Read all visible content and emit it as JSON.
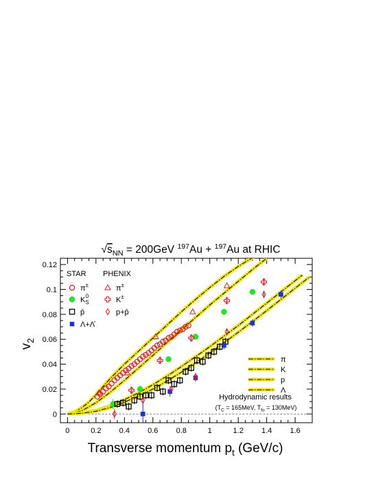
{
  "chart_data": {
    "type": "scatter",
    "title": {
      "sqrt": "√",
      "s": "s",
      "nn": "NN",
      "eq": " = 200GeV ",
      "a1": "197",
      "au1": "Au + ",
      "a2": "197",
      "au2": "Au at RHIC"
    },
    "xlabel": {
      "main": "Transverse momentum p",
      "sub": "t",
      "unit": " (GeV/c)"
    },
    "ylabel": {
      "main": "v",
      "sub": "2"
    },
    "xlim": [
      -0.05,
      1.72
    ],
    "ylim": [
      -0.007,
      0.125
    ],
    "x_ticks": [
      "0",
      "0.2",
      "0.4",
      "0.6",
      "0.8",
      "1",
      "1.2",
      "1.4",
      "1.6"
    ],
    "x_tick_values": [
      0,
      0.2,
      0.4,
      0.6,
      0.8,
      1.0,
      1.2,
      1.4,
      1.6
    ],
    "y_ticks": [
      "0",
      "0.02",
      "0.04",
      "0.06",
      "0.08",
      "0.1",
      "0.12"
    ],
    "y_tick_values": [
      0,
      0.02,
      0.04,
      0.06,
      0.08,
      0.1,
      0.12
    ],
    "zero_line": true,
    "legend": {
      "star_title": "STAR",
      "phenix_title": "PHENIX",
      "star_items": [
        {
          "main": "π",
          "sup": "±",
          "sub": "",
          "marker": "open-circle",
          "color": "#e8141a"
        },
        {
          "main": "K",
          "sup": "0",
          "sub": "S",
          "marker": "filled-circle",
          "color": "#1ee81e"
        },
        {
          "main": "p̄",
          "sup": "",
          "sub": "",
          "marker": "open-square",
          "color": "#000000"
        },
        {
          "main": "Λ+Λ̄",
          "sup": "",
          "sub": "",
          "marker": "filled-square",
          "color": "#1432e6"
        }
      ],
      "phenix_items": [
        {
          "main": "π",
          "sup": "±",
          "marker": "open-triangle",
          "color": "#e8141a"
        },
        {
          "main": "K",
          "sup": "±",
          "marker": "open-cross",
          "color": "#e8141a"
        },
        {
          "main": "p+p̄",
          "sup": "",
          "marker": "open-diamond",
          "color": "#e8141a"
        }
      ],
      "hydro_items": [
        {
          "label": "π"
        },
        {
          "label": "K"
        },
        {
          "label": "p"
        },
        {
          "label": "Λ"
        }
      ],
      "hydro_title": "Hydrodynamic results",
      "hydro_params": {
        "open": "(T",
        "c": "C",
        "mid": " = 165MeV, T",
        "fo": "fo",
        "close": " = 130MeV)"
      }
    },
    "series": [
      {
        "name": "STAR π±",
        "marker": "open-circle",
        "color": "#e8141a",
        "x": [
          0.21,
          0.23,
          0.25,
          0.27,
          0.29,
          0.31,
          0.33,
          0.35,
          0.37,
          0.39,
          0.41,
          0.43,
          0.45,
          0.47,
          0.49,
          0.51,
          0.53,
          0.55,
          0.57,
          0.59,
          0.61,
          0.63,
          0.65,
          0.67,
          0.69,
          0.71,
          0.73,
          0.75,
          0.77,
          0.79,
          0.81,
          0.83,
          0.85
        ],
        "y": [
          0.014,
          0.016,
          0.018,
          0.0205,
          0.022,
          0.0245,
          0.027,
          0.029,
          0.031,
          0.033,
          0.035,
          0.0365,
          0.0385,
          0.04,
          0.042,
          0.044,
          0.046,
          0.0475,
          0.049,
          0.051,
          0.053,
          0.055,
          0.056,
          0.058,
          0.059,
          0.061,
          0.062,
          0.064,
          0.066,
          0.067,
          0.068,
          0.07,
          0.071
        ],
        "err": []
      },
      {
        "name": "STAR K0S",
        "marker": "filled-circle",
        "color": "#1ee81e",
        "x": [
          0.32,
          0.51,
          0.71,
          0.9,
          1.1,
          1.3
        ],
        "y": [
          0.008,
          0.02,
          0.044,
          0.062,
          0.082,
          0.098
        ],
        "err": [
          0.004,
          0.003,
          0.002,
          0.002,
          0.002,
          0.002
        ]
      },
      {
        "name": "STAR p̄",
        "marker": "open-square",
        "color": "#000000",
        "x": [
          0.35,
          0.39,
          0.43,
          0.47,
          0.51,
          0.55,
          0.59,
          0.63,
          0.67,
          0.71,
          0.75,
          0.79,
          0.83,
          0.87,
          0.91,
          0.95,
          0.99,
          1.03,
          1.07,
          1.11
        ],
        "y": [
          0.008,
          0.009,
          0.006,
          0.011,
          0.014,
          0.015,
          0.015,
          0.021,
          0.018,
          0.027,
          0.024,
          0.027,
          0.034,
          0.037,
          0.043,
          0.042,
          0.047,
          0.05,
          0.054,
          0.058
        ],
        "err": [
          0.003,
          0.003,
          0.003,
          0.003,
          0.003,
          0.003,
          0.003,
          0.003,
          0.003,
          0.003,
          0.003,
          0.003,
          0.003,
          0.003,
          0.003,
          0.003,
          0.003,
          0.003,
          0.003,
          0.003
        ]
      },
      {
        "name": "STAR Λ+Λ̄",
        "marker": "filled-square",
        "color": "#1432e6",
        "x": [
          0.53,
          0.72,
          0.9,
          1.1,
          1.3,
          1.5
        ],
        "y": [
          0.0,
          0.018,
          0.029,
          0.055,
          0.073,
          0.096
        ],
        "err": [
          0.01,
          0.004,
          0.003,
          0.003,
          0.003,
          0.003
        ]
      },
      {
        "name": "PHENIX π±",
        "marker": "open-triangle",
        "color": "#e8141a",
        "x": [
          0.22,
          0.42,
          0.62,
          0.88,
          1.12
        ],
        "y": [
          0.017,
          0.033,
          0.062,
          0.082,
          0.103
        ],
        "err": []
      },
      {
        "name": "PHENIX K±",
        "marker": "open-cross",
        "color": "#e8141a",
        "x": [
          0.45,
          0.65,
          0.87,
          1.12,
          1.38
        ],
        "y": [
          0.019,
          0.043,
          0.061,
          0.091,
          0.106
        ],
        "err": [
          0.003,
          0.003,
          0.003,
          0.003,
          0.003
        ]
      },
      {
        "name": "PHENIX p+p̄",
        "marker": "open-diamond",
        "color": "#e8141a",
        "x": [
          0.33,
          0.53,
          0.73,
          0.9,
          1.12,
          1.38
        ],
        "y": [
          0.0,
          0.011,
          0.02,
          0.03,
          0.066,
          0.096
        ],
        "err": [
          0.004,
          0.003,
          0.003,
          0.003,
          0.003,
          0.003
        ]
      }
    ],
    "hydro_curves": [
      {
        "name": "π",
        "x": [
          0.0,
          0.05,
          0.1,
          0.15,
          0.2,
          0.3,
          0.4,
          0.5,
          0.6,
          0.7,
          0.8,
          0.9,
          1.0,
          1.1,
          1.2,
          1.3,
          1.35
        ],
        "y": [
          0.0,
          0.0015,
          0.005,
          0.0095,
          0.0155,
          0.0285,
          0.04,
          0.0505,
          0.061,
          0.0715,
          0.082,
          0.092,
          0.1015,
          0.1105,
          0.1185,
          0.1255,
          0.129
        ]
      },
      {
        "name": "K",
        "x": [
          0.0,
          0.1,
          0.2,
          0.3,
          0.4,
          0.5,
          0.6,
          0.7,
          0.8,
          0.9,
          1.0,
          1.1,
          1.2,
          1.3,
          1.4
        ],
        "y": [
          0.0,
          0.0025,
          0.009,
          0.0175,
          0.027,
          0.037,
          0.047,
          0.0575,
          0.0675,
          0.0775,
          0.0875,
          0.097,
          0.1065,
          0.116,
          0.125
        ]
      },
      {
        "name": "p",
        "x": [
          0.0,
          0.1,
          0.2,
          0.3,
          0.4,
          0.5,
          0.6,
          0.7,
          0.8,
          0.9,
          1.0,
          1.1,
          1.2,
          1.3,
          1.4,
          1.5,
          1.6,
          1.65
        ],
        "y": [
          0.0,
          0.0008,
          0.0028,
          0.0065,
          0.0115,
          0.017,
          0.0235,
          0.0305,
          0.038,
          0.046,
          0.054,
          0.0625,
          0.071,
          0.08,
          0.089,
          0.098,
          0.107,
          0.1115
        ]
      },
      {
        "name": "Λ",
        "x": [
          0.0,
          0.1,
          0.2,
          0.3,
          0.4,
          0.5,
          0.6,
          0.7,
          0.8,
          0.9,
          1.0,
          1.1,
          1.2,
          1.3,
          1.4,
          1.5,
          1.6,
          1.7
        ],
        "y": [
          0.0,
          0.0006,
          0.0022,
          0.0052,
          0.0095,
          0.0145,
          0.02,
          0.0265,
          0.0335,
          0.041,
          0.049,
          0.0572,
          0.0656,
          0.0742,
          0.083,
          0.092,
          0.101,
          0.11
        ]
      }
    ]
  }
}
